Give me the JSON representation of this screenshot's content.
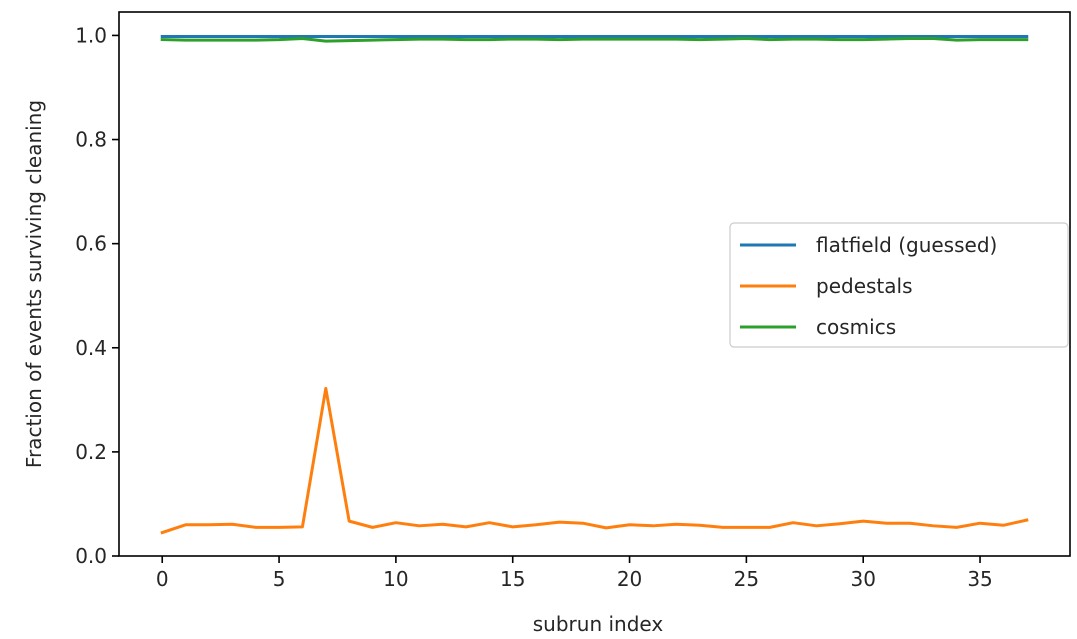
{
  "chart_data": {
    "type": "line",
    "title": "",
    "xlabel": "subrun index",
    "ylabel": "Fraction of events surviving cleaning",
    "xlim": [
      -1.85,
      38.85
    ],
    "ylim": [
      0.0,
      1.045
    ],
    "xticks": [
      0,
      5,
      10,
      15,
      20,
      25,
      30,
      35
    ],
    "xtick_labels": [
      "0",
      "5",
      "10",
      "15",
      "20",
      "25",
      "30",
      "35"
    ],
    "yticks": [
      0.0,
      0.2,
      0.4,
      0.6,
      0.8,
      1.0
    ],
    "ytick_labels": [
      "0.0",
      "0.2",
      "0.4",
      "0.6",
      "0.8",
      "1.0"
    ],
    "grid": false,
    "legend_position": "center-right",
    "x": [
      0,
      1,
      2,
      3,
      4,
      5,
      6,
      7,
      8,
      9,
      10,
      11,
      12,
      13,
      14,
      15,
      16,
      17,
      18,
      19,
      20,
      21,
      22,
      23,
      24,
      25,
      26,
      27,
      28,
      29,
      30,
      31,
      32,
      33,
      34,
      35,
      36,
      37
    ],
    "series": [
      {
        "name": "flatfield (guessed)",
        "color": "#1f77b4",
        "values": [
          0.998,
          0.998,
          0.998,
          0.998,
          0.998,
          0.998,
          0.998,
          0.998,
          0.998,
          0.998,
          0.998,
          0.998,
          0.998,
          0.998,
          0.998,
          0.998,
          0.998,
          0.998,
          0.998,
          0.998,
          0.998,
          0.998,
          0.998,
          0.998,
          0.998,
          0.998,
          0.998,
          0.998,
          0.998,
          0.998,
          0.998,
          0.998,
          0.998,
          0.998,
          0.998,
          0.998,
          0.998,
          0.998
        ]
      },
      {
        "name": "pedestals",
        "color": "#ff7f0e",
        "values": [
          0.045,
          0.06,
          0.06,
          0.061,
          0.055,
          0.055,
          0.056,
          0.322,
          0.067,
          0.055,
          0.064,
          0.058,
          0.061,
          0.056,
          0.064,
          0.056,
          0.06,
          0.065,
          0.063,
          0.054,
          0.06,
          0.058,
          0.061,
          0.059,
          0.055,
          0.055,
          0.055,
          0.064,
          0.058,
          0.062,
          0.067,
          0.063,
          0.063,
          0.058,
          0.055,
          0.063,
          0.059,
          0.069
        ]
      },
      {
        "name": "cosmics",
        "color": "#2ca02c",
        "values": [
          0.992,
          0.991,
          0.991,
          0.991,
          0.991,
          0.992,
          0.994,
          0.989,
          0.99,
          0.991,
          0.992,
          0.993,
          0.993,
          0.992,
          0.992,
          0.993,
          0.993,
          0.992,
          0.993,
          0.993,
          0.993,
          0.993,
          0.993,
          0.992,
          0.993,
          0.994,
          0.992,
          0.993,
          0.993,
          0.992,
          0.992,
          0.993,
          0.994,
          0.994,
          0.991,
          0.992,
          0.992,
          0.992
        ]
      }
    ]
  }
}
